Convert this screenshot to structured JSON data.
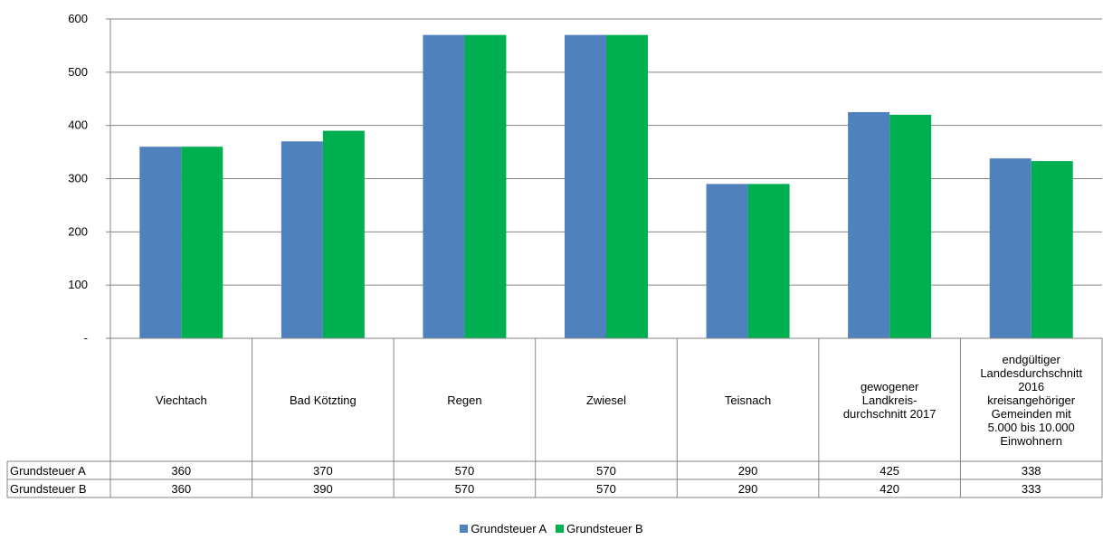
{
  "chart_data": {
    "type": "bar",
    "categories": [
      "Viechtach",
      "Bad Kötzting",
      "Regen",
      "Zwiesel",
      "Teisnach",
      "gewogener Landkreis-durchschnitt 2017",
      "endgültiger Landesdurchschnitt 2016 kreisangehöriger Gemeinden mit 5.000 bis 10.000 Einwohnern"
    ],
    "category_lines": [
      [
        "Viechtach"
      ],
      [
        "Bad Kötzting"
      ],
      [
        "Regen"
      ],
      [
        "Zwiesel"
      ],
      [
        "Teisnach"
      ],
      [
        "gewogener",
        "Landkreis-",
        "durchschnitt 2017"
      ],
      [
        "endgültiger",
        "Landesdurchschnitt",
        "2016",
        "kreisangehöriger",
        "Gemeinden mit",
        "5.000 bis 10.000",
        "Einwohnern"
      ]
    ],
    "series": [
      {
        "name": "Grundsteuer A",
        "color": "#4F81BD",
        "values": [
          360,
          370,
          570,
          570,
          290,
          425,
          338
        ],
        "labels": [
          "360",
          "370",
          "570",
          "570",
          "290",
          "425",
          "338"
        ]
      },
      {
        "name": "Grundsteuer B",
        "color": "#00B050",
        "values": [
          360,
          390,
          570,
          570,
          290,
          420,
          333
        ],
        "labels": [
          "360",
          "390",
          "570",
          "570",
          "290",
          "420",
          "333"
        ]
      }
    ],
    "ylim": [
      0,
      600
    ],
    "yticks": [
      0,
      100,
      200,
      300,
      400,
      500,
      600
    ],
    "ytick_labels": [
      "-",
      "100",
      "200",
      "300",
      "400",
      "500",
      "600"
    ],
    "grid": true,
    "legend": "bottom",
    "data_table": true,
    "title": "",
    "xlabel": "",
    "ylabel": ""
  }
}
